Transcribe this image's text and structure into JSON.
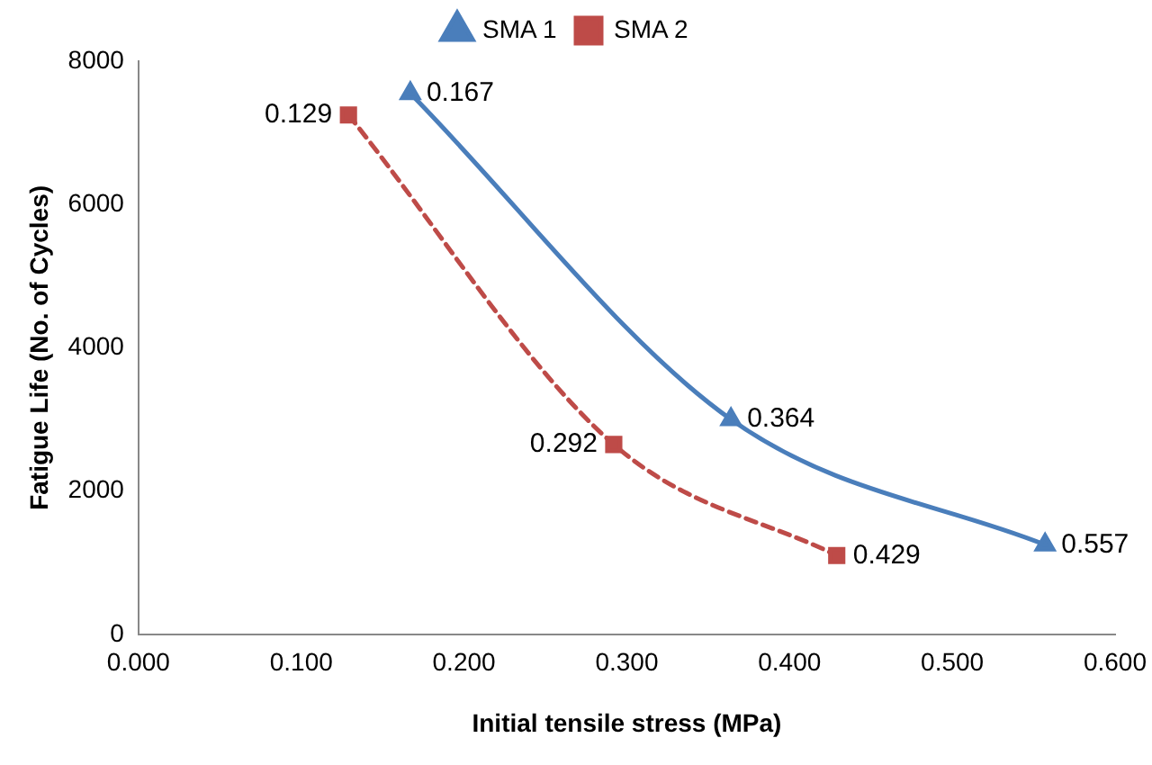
{
  "chart_data": {
    "type": "line",
    "xlabel": "Initial tensile stress (MPa)",
    "ylabel": "Fatigue Life (No. of Cycles)",
    "legend": "top",
    "grid": false,
    "xlim": [
      0,
      0.6
    ],
    "xticks": [
      {
        "value": 0,
        "label": "0.000"
      },
      {
        "value": 0.1,
        "label": "0.100"
      },
      {
        "value": 0.2,
        "label": "0.200"
      },
      {
        "value": 0.3,
        "label": "0.300"
      },
      {
        "value": 0.4,
        "label": "0.400"
      },
      {
        "value": 0.5,
        "label": "0.500"
      },
      {
        "value": 0.6,
        "label": "0.600"
      }
    ],
    "ylim": [
      0,
      8000
    ],
    "yticks": [
      0,
      2000,
      4000,
      6000,
      8000
    ],
    "series": [
      {
        "name": "SMA 1",
        "color": "#4a7ebb",
        "marker": "triangle",
        "line_style": "solid",
        "x": [
          0.167,
          0.364,
          0.557
        ],
        "values": [
          7550,
          3000,
          1250
        ]
      },
      {
        "name": "SMA 2",
        "color": "#be4b48",
        "marker": "square",
        "line_style": "dashed",
        "x": [
          0.129,
          0.292,
          0.429
        ],
        "values": [
          7250,
          2650,
          1100
        ]
      }
    ],
    "annotations": [
      {
        "text": "0.167",
        "x": 0.167,
        "y": 7550
      },
      {
        "text": "0.364",
        "x": 0.364,
        "y": 3000
      },
      {
        "text": "0.557",
        "x": 0.557,
        "y": 1250
      },
      {
        "text": "0.129",
        "x": 0.129,
        "y": 7250
      },
      {
        "text": "0.292",
        "x": 0.292,
        "y": 2650
      },
      {
        "text": "0.429",
        "x": 0.429,
        "y": 1100
      }
    ]
  }
}
